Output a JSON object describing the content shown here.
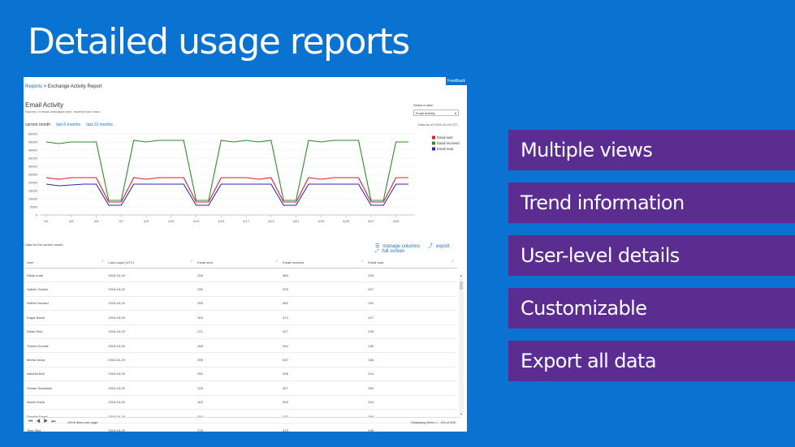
{
  "slide": {
    "title": "Detailed usage reports",
    "features": [
      "Multiple views",
      "Trend information",
      "User-level details",
      "Customizable",
      "Export all data"
    ],
    "feature_color": "#5c2d91",
    "bg_color": "#0a72d0"
  },
  "report": {
    "feedback": "Feedback",
    "breadcrumb": {
      "root": "Reports",
      "sep": " > ",
      "current": "Exchange Activity Report"
    },
    "title": "Email Activity",
    "subtitle": "Number of email messages sent, received and read.",
    "ranges": [
      "current month",
      "last 6 months",
      "last 12 months"
    ],
    "select_label": "Select a view:",
    "select_value": "Email Activity",
    "as_of": "Data as of 2015-04-29 UTC",
    "grid_label": "Data for the current month",
    "tools": {
      "manage_columns": "manage columns",
      "export": "export",
      "full_screen": "full screen"
    },
    "columns": [
      "User",
      "Last Logon (UTC)",
      "Email sent",
      "Email received",
      "Email read"
    ],
    "rows": [
      [
        "Nikita Irudh",
        "2015-04-29",
        "209",
        "569",
        "234"
      ],
      [
        "Sabine Gunkin",
        "2015-04-29",
        "290",
        "576",
        "247"
      ],
      [
        "Wilfred Wessel",
        "2015-04-29",
        "253",
        "561",
        "240"
      ],
      [
        "Edgar Bame",
        "2015-04-29",
        "303",
        "474",
        "247"
      ],
      [
        "Dinah Eido",
        "2015-04-29",
        "271",
        "527",
        "235"
      ],
      [
        "Tharon Scholle",
        "2015-04-29",
        "268",
        "544",
        "235"
      ],
      [
        "Merita Jarda",
        "2015-04-29",
        "298",
        "537",
        "248"
      ],
      [
        "Isabella Birk",
        "2015-04-29",
        "252",
        "538",
        "214"
      ],
      [
        "Shinae Sebastian",
        "2015-04-29",
        "315",
        "527",
        "269"
      ],
      [
        "Marta Holda",
        "2015-04-29",
        "302",
        "545",
        "244"
      ],
      [
        "Donella Szigel",
        "2015-04-29",
        "303",
        "573",
        "266"
      ],
      [
        "Tess Siba",
        "2015-04-29",
        "278",
        "475",
        "196"
      ]
    ],
    "pager": {
      "page_size": "100",
      "per_page": "items per page",
      "displaying": "Displaying items 1 - 100 of 500"
    }
  },
  "chart_data": {
    "type": "line",
    "x": [
      "4/1",
      "4/2",
      "4/3",
      "4/4",
      "4/5",
      "4/6",
      "4/7",
      "4/8",
      "4/9",
      "4/10",
      "4/11",
      "4/12",
      "4/13",
      "4/14",
      "4/15",
      "4/16",
      "4/17",
      "4/18",
      "4/19",
      "4/20",
      "4/21",
      "4/22",
      "4/23",
      "4/24",
      "4/25",
      "4/26",
      "4/27",
      "4/28",
      "4/29",
      "4/30"
    ],
    "xticks": [
      "4/1",
      "4/3",
      "4/5",
      "4/7",
      "4/9",
      "4/11",
      "4/13",
      "4/15",
      "4/17",
      "4/19",
      "4/21",
      "4/23",
      "4/25",
      "4/27",
      "4/29"
    ],
    "yticks": [
      "50000",
      "45000",
      "40000",
      "35000",
      "30000",
      "25000",
      "20000",
      "15000",
      "10000",
      "5000",
      "0"
    ],
    "ylim": [
      0,
      50000
    ],
    "legend_position": "right",
    "series": [
      {
        "name": "Email sent",
        "color": "#d0202e",
        "values": [
          23000,
          22000,
          23000,
          23000,
          23000,
          8000,
          8000,
          23000,
          22000,
          23000,
          23000,
          23000,
          8000,
          8000,
          23000,
          23000,
          23000,
          22000,
          23000,
          8000,
          8000,
          23000,
          22000,
          23000,
          23000,
          23000,
          8000,
          8000,
          23000,
          23000
        ]
      },
      {
        "name": "Email received",
        "color": "#2d8a2d",
        "values": [
          45000,
          44000,
          45000,
          45000,
          45000,
          9000,
          9000,
          46000,
          45000,
          46000,
          46000,
          46000,
          9000,
          9000,
          46000,
          45000,
          46000,
          45000,
          46000,
          9000,
          9000,
          46000,
          45000,
          46000,
          46000,
          46000,
          9000,
          9000,
          45000,
          45000
        ]
      },
      {
        "name": "Email read",
        "color": "#2c2aa8",
        "values": [
          19000,
          18000,
          18500,
          19000,
          19000,
          6000,
          6000,
          19000,
          19000,
          19000,
          19000,
          19000,
          6000,
          6000,
          19000,
          19000,
          19000,
          19000,
          19000,
          6000,
          6000,
          19000,
          19000,
          19000,
          19000,
          19000,
          6000,
          6000,
          19000,
          19000
        ]
      }
    ]
  }
}
